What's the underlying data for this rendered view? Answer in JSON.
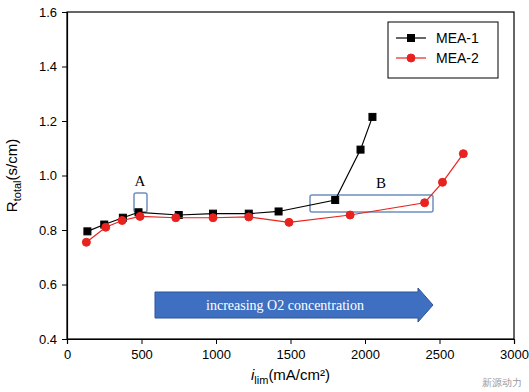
{
  "chart_data": {
    "type": "line",
    "xlabel": "ilim(mA/cm²)",
    "ylabel": "Rtotal(s/cm)",
    "xlim": [
      0,
      3000
    ],
    "ylim": [
      0.4,
      1.6
    ],
    "xticks": [
      0,
      500,
      1000,
      1500,
      2000,
      2500,
      3000
    ],
    "yticks": [
      0.4,
      0.6,
      0.8,
      {
        "value": 1,
        "label": "1.0"
      },
      1.2,
      1.4,
      1.6
    ],
    "legend": "upper right",
    "grid": false,
    "series": [
      {
        "name": "MEA-1",
        "color": "#000000",
        "marker": "square",
        "line_style": "solid",
        "x": [
          137,
          250,
          375,
          480,
          750,
          980,
          1220,
          1420,
          1800,
          1970,
          2050
        ],
        "values": [
          0.795,
          0.82,
          0.845,
          0.865,
          0.855,
          0.86,
          0.86,
          0.868,
          0.91,
          1.095,
          1.215
        ]
      },
      {
        "name": "MEA-2",
        "color": "#e8231f",
        "marker": "circle",
        "line_style": "solid",
        "x": [
          130,
          260,
          370,
          490,
          730,
          980,
          1220,
          1490,
          1900,
          2400,
          2520,
          2660
        ],
        "values": [
          0.755,
          0.81,
          0.835,
          0.85,
          0.845,
          0.845,
          0.848,
          0.828,
          0.855,
          0.9,
          0.975,
          1.08
        ]
      }
    ],
    "annotations": [
      {
        "text": "A"
      },
      {
        "text": "B"
      },
      {
        "text": "increasing O2 concentration"
      },
      {
        "text": "新源动力"
      }
    ]
  }
}
